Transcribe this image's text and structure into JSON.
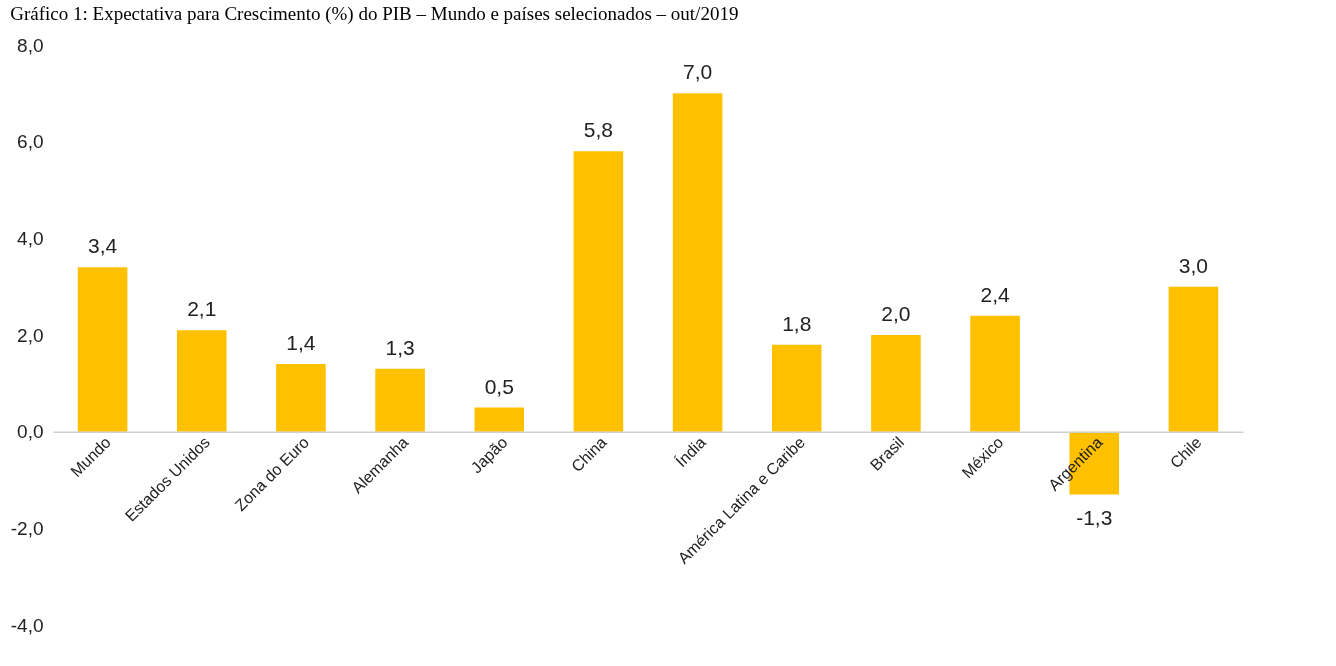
{
  "chart_data": {
    "type": "bar",
    "title": "Gráfico 1: Expectativa para Crescimento (%) do PIB – Mundo e países selecionados – out/2019",
    "categories": [
      "Mundo",
      "Estados Unidos",
      "Zona do Euro",
      "Alemanha",
      "Japão",
      "China",
      "Índia",
      "América Latina e Caribe",
      "Brasil",
      "México",
      "Argentina",
      "Chile"
    ],
    "values": [
      3.4,
      2.1,
      1.4,
      1.3,
      0.5,
      5.8,
      7.0,
      1.8,
      2.0,
      2.4,
      -1.3,
      3.0
    ],
    "color": "#ffc000",
    "ylim": [
      -4,
      8
    ],
    "yticks": [
      {
        "value": -4,
        "label": "-4,0"
      },
      {
        "value": -2,
        "label": "-2,0"
      },
      {
        "value": 0,
        "label": "0,0"
      },
      {
        "value": 2,
        "label": "2,0"
      },
      {
        "value": 4,
        "label": "4,0"
      },
      {
        "value": 6,
        "label": "6,0"
      },
      {
        "value": 8,
        "label": "8,0"
      }
    ],
    "value_labels": [
      "3,4",
      "2,1",
      "1,4",
      "1,3",
      "0,5",
      "5,8",
      "7,0",
      "1,8",
      "2,0",
      "2,4",
      "-1,3",
      "3,0"
    ],
    "grid": false
  }
}
